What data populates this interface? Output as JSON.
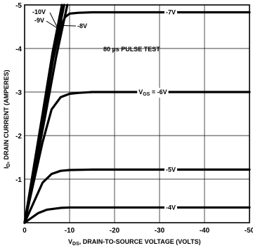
{
  "chart_data": {
    "type": "line",
    "title": "",
    "xlabel_main": "V",
    "xlabel_sub": "DS",
    "xlabel_rest": ", DRAIN-TO-SOURCE VOLTAGE (VOLTS)",
    "ylabel": "I",
    "ylabel_sub": "D",
    "ylabel_rest": ", DRAIN CURRENT (AMPERES)",
    "annotation": "80 µs PULSE TEST",
    "x_ticks": [
      0,
      -10,
      -20,
      -30,
      -40,
      -50
    ],
    "x_tick_labels": [
      "0",
      "-10",
      "-20",
      "-30",
      "-40",
      "-50"
    ],
    "y_ticks": [
      -1,
      -2,
      -3,
      -4,
      -5
    ],
    "y_tick_labels": [
      "-1",
      "-2",
      "-3",
      "-4",
      "-5"
    ],
    "xlim": [
      0,
      -50
    ],
    "ylim": [
      0,
      -5
    ],
    "grid": true,
    "series": [
      {
        "name": "-4V",
        "label_prefix": "",
        "label_x": -32.5,
        "x": [
          0,
          -3,
          -5,
          -8,
          -10,
          -15,
          -20,
          -30,
          -40,
          -50
        ],
        "y": [
          0,
          -0.22,
          -0.3,
          -0.34,
          -0.35,
          -0.35,
          -0.35,
          -0.35,
          -0.35,
          -0.35
        ]
      },
      {
        "name": "-5V",
        "label_prefix": "",
        "label_x": -32.5,
        "x": [
          0,
          -4,
          -6,
          -8,
          -10,
          -15,
          -20,
          -30,
          -40,
          -50
        ],
        "y": [
          0,
          -0.92,
          -1.12,
          -1.19,
          -1.21,
          -1.22,
          -1.22,
          -1.22,
          -1.22,
          -1.22
        ]
      },
      {
        "name": "-6V",
        "label_prefix": "GS",
        "label_x": -28.5,
        "x": [
          0,
          -4,
          -6,
          -8,
          -10,
          -12,
          -15,
          -20,
          -30,
          -40,
          -50
        ],
        "y": [
          0,
          -1.85,
          -2.6,
          -2.88,
          -2.96,
          -2.98,
          -3.0,
          -3.0,
          -3.0,
          -3.0,
          -3.0
        ]
      },
      {
        "name": "-7V",
        "label_prefix": "",
        "label_x": -32.5,
        "x": [
          0,
          -4,
          -6,
          -8,
          -9,
          -10,
          -12,
          -15,
          -20,
          -30,
          -40,
          -50
        ],
        "y": [
          0,
          -2.3,
          -3.6,
          -4.5,
          -4.72,
          -4.8,
          -4.82,
          -4.83,
          -4.83,
          -4.83,
          -4.83,
          -4.83
        ]
      },
      {
        "name": "-8V",
        "label_prefix": "",
        "label_x": null,
        "x": [
          0,
          -4.5,
          -7,
          -9.5
        ],
        "y": [
          0,
          -2.4,
          -3.8,
          -5.0
        ]
      },
      {
        "name": "-9V",
        "label_prefix": "",
        "label_x": null,
        "x": [
          0,
          -4.2,
          -6.5,
          -8.8
        ],
        "y": [
          0,
          -2.45,
          -3.85,
          -5.0
        ]
      },
      {
        "name": "-10V",
        "label_prefix": "",
        "label_x": null,
        "x": [
          0,
          -4.0,
          -6.2,
          -8.3
        ],
        "y": [
          0,
          -2.5,
          -3.9,
          -5.0
        ]
      }
    ]
  }
}
